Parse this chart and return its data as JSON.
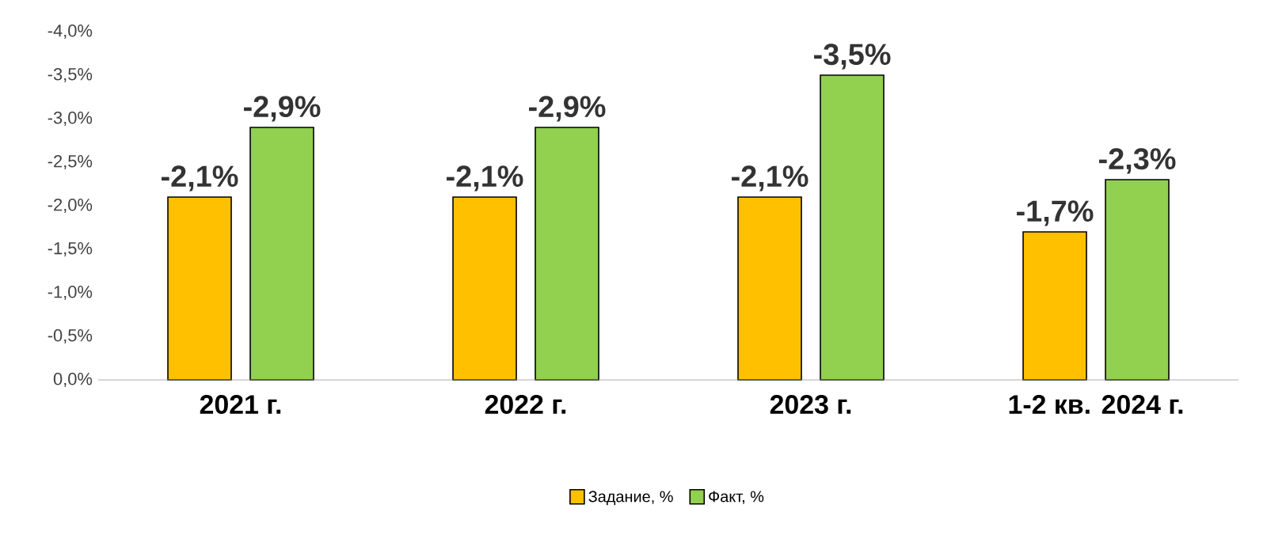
{
  "chart_data": {
    "type": "bar",
    "categories": [
      "2021 г.",
      "2022 г.",
      "2023 г.",
      "1-2 кв. 2024 г."
    ],
    "series": [
      {
        "name": "Задание, %",
        "color": "#ffc000",
        "values": [
          -2.1,
          -2.1,
          -2.1,
          -1.7
        ],
        "value_labels": [
          "-2,1%",
          "-2,1%",
          "-2,1%",
          "-1,7%"
        ]
      },
      {
        "name": "Факт, %",
        "color": "#92d050",
        "values": [
          -2.9,
          -2.9,
          -3.5,
          -2.3
        ],
        "value_labels": [
          "-2,9%",
          "-2,9%",
          "-3,5%",
          "-2,3%"
        ]
      }
    ],
    "ylim": [
      0,
      -4
    ],
    "yticks": [
      {
        "value": 0,
        "label": "0,0%"
      },
      {
        "value": -0.5,
        "label": "-0,5%"
      },
      {
        "value": -1,
        "label": "-1,0%"
      },
      {
        "value": -1.5,
        "label": "-1,5%"
      },
      {
        "value": -2,
        "label": "-2,0%"
      },
      {
        "value": -2.5,
        "label": "-2,5%"
      },
      {
        "value": -3,
        "label": "-3,0%"
      },
      {
        "value": -3.5,
        "label": "-3,5%"
      },
      {
        "value": -4,
        "label": "-4,0%"
      }
    ],
    "legend": "bottom"
  }
}
